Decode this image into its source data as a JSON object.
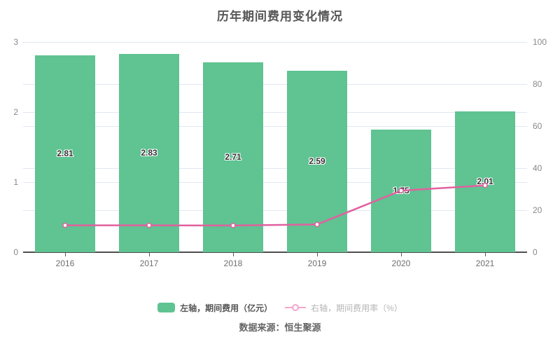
{
  "title": "历年期间费用变化情况",
  "source": "数据来源：恒生聚源",
  "legend": {
    "items": [
      {
        "label": "左轴，期间费用（亿元）",
        "type": "bar"
      },
      {
        "label": "右轴，期间费用率（%）",
        "type": "line"
      }
    ]
  },
  "colors": {
    "bar": "#5fc392",
    "line": "#e2609f",
    "legend_line": "#f2a6cb",
    "grid": "#dfe6f3",
    "axis": "#4f4f4f"
  },
  "chart_data": {
    "type": "combo",
    "title": "历年期间费用变化情况",
    "categories": [
      "2016",
      "2017",
      "2018",
      "2019",
      "2020",
      "2021"
    ],
    "series": [
      {
        "name": "左轴，期间费用（亿元）",
        "type": "bar",
        "axis": "left",
        "unit": "亿元",
        "values": [
          2.81,
          2.83,
          2.71,
          2.59,
          1.75,
          2.01
        ],
        "labels": [
          "2.81",
          "2.83",
          "2.71",
          "2.59",
          "1.75",
          "2.01"
        ],
        "color": "#5fc392"
      },
      {
        "name": "右轴，期间费用率（%）",
        "type": "line",
        "axis": "right",
        "unit": "%",
        "values": [
          12.8,
          12.8,
          12.7,
          13.2,
          29.3,
          31.8
        ],
        "values_are_estimates": true,
        "color": "#e2609f"
      }
    ],
    "left_axis": {
      "min": 0,
      "max": 3,
      "ticks": [
        0,
        1,
        2,
        3
      ]
    },
    "right_axis": {
      "min": 0,
      "max": 100,
      "ticks": [
        0,
        20,
        40,
        60,
        80,
        100
      ]
    },
    "grid": true,
    "legend_position": "bottom",
    "source": "数据来源：恒生聚源"
  }
}
